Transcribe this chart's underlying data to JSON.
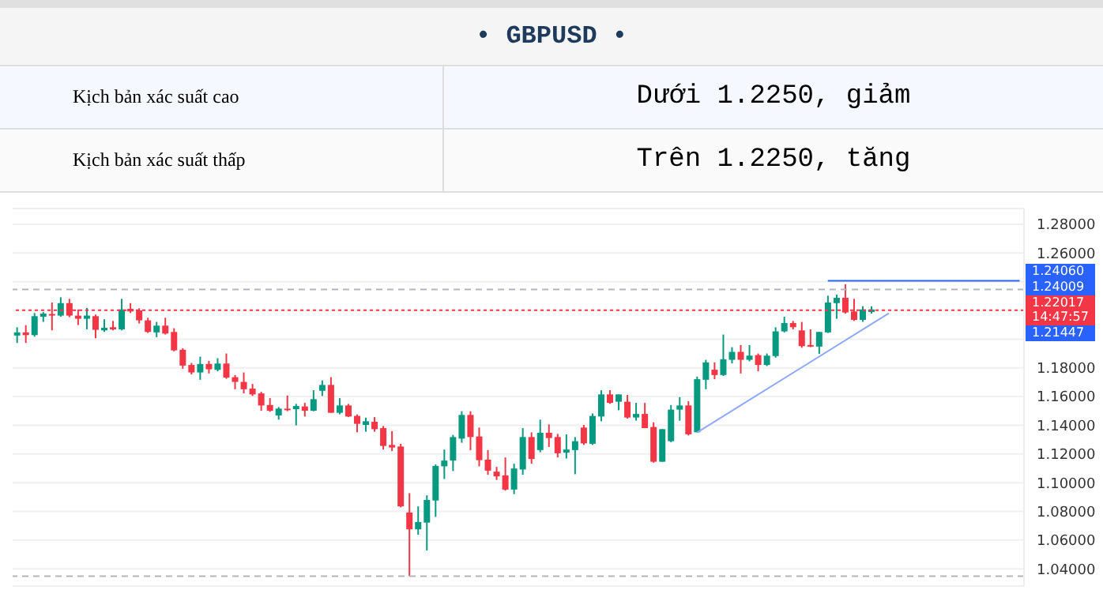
{
  "chart_data": {
    "type": "candlestick",
    "title": "• GBPUSD •",
    "annotations": [
      "Kịch bản xác suất cao",
      "Dưới 1.2250, giảm",
      "Kịch bản xác suất thấp",
      "Trên 1.2250, tăng",
      "1.24060",
      "1.24009",
      "1.21447"
    ],
    "categories": [
      null,
      null,
      null,
      null,
      null,
      null,
      null,
      null,
      null,
      null,
      null,
      null,
      null,
      null,
      null,
      null,
      null,
      null,
      null,
      null,
      null,
      null,
      null,
      null,
      null,
      null,
      null,
      null,
      null,
      null,
      null,
      null,
      null,
      null,
      null,
      null,
      null,
      null,
      null,
      null,
      null,
      null,
      null,
      null,
      null,
      null,
      null,
      null,
      null,
      null,
      null,
      null,
      null,
      null,
      null,
      null,
      null,
      null,
      null,
      null,
      null,
      null,
      null,
      null,
      null,
      null,
      null,
      null,
      null,
      null,
      null,
      null,
      null,
      null,
      null,
      null,
      null,
      null,
      null,
      null,
      null,
      null,
      null,
      null,
      null,
      null,
      null,
      null,
      null,
      null,
      null,
      null,
      null,
      null,
      null,
      null,
      null,
      null,
      null,
      null,
      null,
      null,
      null,
      null,
      null,
      null,
      null,
      null,
      null,
      null,
      null,
      null,
      null,
      null,
      null,
      null
    ],
    "ohlc": [
      [
        1.2025,
        1.2083,
        1.1973,
        1.2047
      ],
      [
        1.2047,
        1.2098,
        1.1973,
        1.2028
      ],
      [
        1.2028,
        1.2182,
        1.2017,
        1.216
      ],
      [
        1.2156,
        1.2189,
        1.212,
        1.2178
      ],
      [
        1.2175,
        1.2255,
        1.2061,
        1.2167
      ],
      [
        1.2164,
        1.2292,
        1.2156,
        1.2251
      ],
      [
        1.2251,
        1.2281,
        1.2153,
        1.2164
      ],
      [
        1.2164,
        1.2207,
        1.2098,
        1.2142
      ],
      [
        1.2142,
        1.2218,
        1.2068,
        1.2164
      ],
      [
        1.216,
        1.2171,
        1.2006,
        1.2065
      ],
      [
        1.2061,
        1.2138,
        1.205,
        1.2079
      ],
      [
        1.2083,
        1.2127,
        1.2061,
        1.2068
      ],
      [
        1.2068,
        1.2281,
        1.2061,
        1.2207
      ],
      [
        1.2211,
        1.2251,
        1.2182,
        1.2193
      ],
      [
        1.22,
        1.2215,
        1.2109,
        1.2131
      ],
      [
        1.2131,
        1.2149,
        1.2043,
        1.205
      ],
      [
        1.2047,
        1.212,
        1.2014,
        1.2094
      ],
      [
        1.2094,
        1.2149,
        1.2032,
        1.2039
      ],
      [
        1.205,
        1.2076,
        1.1915,
        1.1922
      ],
      [
        1.1926,
        1.1937,
        1.1794,
        1.1816
      ],
      [
        1.182,
        1.1834,
        1.1754,
        1.1768
      ],
      [
        1.1768,
        1.1878,
        1.1717,
        1.1827
      ],
      [
        1.1827,
        1.1849,
        1.1761,
        1.179
      ],
      [
        1.1786,
        1.1867,
        1.1776,
        1.183
      ],
      [
        1.183,
        1.19,
        1.1724,
        1.1732
      ],
      [
        1.1735,
        1.175,
        1.1651,
        1.1702
      ],
      [
        1.1702,
        1.1768,
        1.1622,
        1.1651
      ],
      [
        1.1655,
        1.1688,
        1.1604,
        1.1615
      ],
      [
        1.1622,
        1.1633,
        1.1501,
        1.1538
      ],
      [
        1.1541,
        1.1589,
        1.1494,
        1.1501
      ],
      [
        1.1468,
        1.1527,
        1.1439,
        1.1516
      ],
      [
        1.1516,
        1.1607,
        1.1498,
        1.1509
      ],
      [
        1.1512,
        1.1549,
        1.1399,
        1.1534
      ],
      [
        1.1531,
        1.1556,
        1.1461,
        1.1501
      ],
      [
        1.1501,
        1.1644,
        1.1498,
        1.1582
      ],
      [
        1.164,
        1.1713,
        1.1604,
        1.1681
      ],
      [
        1.1681,
        1.1735,
        1.1487,
        1.1487
      ],
      [
        1.1487,
        1.1589,
        1.1476,
        1.1538
      ],
      [
        1.1538,
        1.1549,
        1.1457,
        1.1461
      ],
      [
        1.1465,
        1.1476,
        1.1351,
        1.141
      ],
      [
        1.1402,
        1.1453,
        1.1355,
        1.1428
      ],
      [
        1.1424,
        1.1457,
        1.1355,
        1.1373
      ],
      [
        1.138,
        1.1395,
        1.1231,
        1.1256
      ],
      [
        1.1263,
        1.1359,
        1.122,
        1.1245
      ],
      [
        1.1252,
        1.1271,
        1.0828,
        1.0835
      ],
      [
        1.0792,
        1.0927,
        1.0349,
        1.0675
      ],
      [
        1.0675,
        1.0835,
        1.0638,
        1.0726
      ],
      [
        1.0722,
        1.0912,
        1.0528,
        1.088
      ],
      [
        1.0876,
        1.1128,
        1.0762,
        1.1117
      ],
      [
        1.1114,
        1.1231,
        1.1026,
        1.1154
      ],
      [
        1.1154,
        1.1333,
        1.1081,
        1.1318
      ],
      [
        1.1307,
        1.1498,
        1.1278,
        1.1472
      ],
      [
        1.1472,
        1.1498,
        1.1227,
        1.1318
      ],
      [
        1.1322,
        1.1384,
        1.1114,
        1.1157
      ],
      [
        1.1161,
        1.1227,
        1.1055,
        1.1084
      ],
      [
        1.1077,
        1.111,
        1.1019,
        1.1044
      ],
      [
        1.1051,
        1.1176,
        1.0945,
        1.0952
      ],
      [
        1.0952,
        1.1132,
        1.092,
        1.1099
      ],
      [
        1.1092,
        1.138,
        1.1055,
        1.1318
      ],
      [
        1.1318,
        1.1351,
        1.1132,
        1.1165
      ],
      [
        1.1227,
        1.1439,
        1.1212,
        1.1348
      ],
      [
        1.1348,
        1.1406,
        1.1249,
        1.1311
      ],
      [
        1.1318,
        1.134,
        1.1176,
        1.1205
      ],
      [
        1.1209,
        1.1337,
        1.1168,
        1.1231
      ],
      [
        1.1227,
        1.1318,
        1.1059,
        1.1289
      ],
      [
        1.1384,
        1.1402,
        1.1263,
        1.1274
      ],
      [
        1.1271,
        1.1483,
        1.1263,
        1.1465
      ],
      [
        1.1461,
        1.1644,
        1.1428,
        1.1615
      ],
      [
        1.1615,
        1.1644,
        1.1549,
        1.1556
      ],
      [
        1.1564,
        1.1615,
        1.1505,
        1.1615
      ],
      [
        1.1564,
        1.1611,
        1.1446,
        1.1454
      ],
      [
        1.1454,
        1.1556,
        1.1432,
        1.1479
      ],
      [
        1.1479,
        1.1556,
        1.138,
        1.138
      ],
      [
        1.1388,
        1.1421,
        1.1139,
        1.1146
      ],
      [
        1.1146,
        1.1373,
        1.1146,
        1.1373
      ],
      [
        1.1289,
        1.1541,
        1.1282,
        1.1509
      ],
      [
        1.1509,
        1.1596,
        1.1432,
        1.1538
      ],
      [
        1.1538,
        1.1567,
        1.1329,
        1.1337
      ],
      [
        1.1351,
        1.1739,
        1.1351,
        1.1721
      ],
      [
        1.1717,
        1.1856,
        1.1651,
        1.1838
      ],
      [
        1.1787,
        1.1838,
        1.1721,
        1.175
      ],
      [
        1.175,
        1.2032,
        1.1743,
        1.186
      ],
      [
        1.1856,
        1.1944,
        1.1831,
        1.1911
      ],
      [
        1.1911,
        1.1959,
        1.1761,
        1.1856
      ],
      [
        1.1856,
        1.1959,
        1.1845,
        1.1885
      ],
      [
        1.1889,
        1.19,
        1.1776,
        1.182
      ],
      [
        1.182,
        1.19,
        1.1812,
        1.1885
      ],
      [
        1.1882,
        1.2083,
        1.1871,
        1.2054
      ],
      [
        1.2054,
        1.2156,
        1.2047,
        1.2112
      ],
      [
        1.2112,
        1.2127,
        1.2068,
        1.2083
      ],
      [
        1.2061,
        1.212,
        1.194,
        1.1951
      ],
      [
        1.1959,
        1.2068,
        1.1944,
        1.1948
      ],
      [
        1.1948,
        1.205,
        1.1897,
        1.205
      ],
      [
        1.2047,
        1.2303,
        1.2043,
        1.2255
      ],
      [
        1.2251,
        1.231,
        1.2142,
        1.2288
      ],
      [
        1.2288,
        1.2383,
        1.2178,
        1.2186
      ],
      [
        1.2193,
        1.2281,
        1.2127,
        1.2134
      ],
      [
        1.2134,
        1.2229,
        1.212,
        1.2207
      ],
      [
        1.2189,
        1.2229,
        1.2178,
        1.2207
      ],
      null,
      null,
      null,
      null,
      null,
      null,
      null,
      null,
      null,
      null,
      null,
      null,
      null,
      null,
      null,
      null,
      null
    ],
    "colors": [
      "#089981",
      "#f23645",
      "#089981",
      "#089981",
      "#f23645",
      "#089981",
      "#f23645",
      "#f23645",
      "#089981",
      "#f23645",
      "#089981",
      "#f23645",
      "#089981",
      "#f23645",
      "#f23645",
      "#f23645",
      "#089981",
      "#f23645",
      "#f23645",
      "#f23645",
      "#f23645",
      "#089981",
      "#f23645",
      "#089981",
      "#f23645",
      "#f23645",
      "#f23645",
      "#f23645",
      "#f23645",
      "#f23645",
      "#089981",
      "#f23645",
      "#089981",
      "#f23645",
      "#089981",
      "#089981",
      "#f23645",
      "#089981",
      "#f23645",
      "#f23645",
      "#089981",
      "#f23645",
      "#f23645",
      "#f23645",
      "#f23645",
      "#f23645",
      "#089981",
      "#089981",
      "#089981",
      "#089981",
      "#089981",
      "#089981",
      "#f23645",
      "#f23645",
      "#f23645",
      "#f23645",
      "#f23645",
      "#089981",
      "#089981",
      "#f23645",
      "#089981",
      "#f23645",
      "#f23645",
      "#089981",
      "#089981",
      "#f23645",
      "#089981",
      "#089981",
      "#f23645",
      "#089981",
      "#f23645",
      "#089981",
      "#f23645",
      "#f23645",
      "#089981",
      "#089981",
      "#089981",
      "#f23645",
      "#089981",
      "#089981",
      "#f23645",
      "#089981",
      "#089981",
      "#f23645",
      "#089981",
      "#f23645",
      "#089981",
      "#089981",
      "#089981",
      "#f23645",
      "#f23645",
      "#f23645",
      "#089981",
      "#089981",
      "#089981",
      "#f23645",
      "#f23645",
      "#089981",
      "#089981",
      null,
      null,
      null,
      null,
      null,
      null,
      null,
      null,
      null,
      null,
      null,
      null,
      null,
      null,
      null,
      null,
      null
    ],
    "series": [
      {
        "type": "line",
        "color": "#2962ff",
        "values": [
          null,
          null,
          null,
          null,
          null,
          null,
          null,
          null,
          null,
          null,
          null,
          null,
          null,
          null,
          null,
          null,
          null,
          null,
          null,
          null,
          null,
          null,
          null,
          null,
          null,
          null,
          null,
          null,
          null,
          null,
          null,
          null,
          null,
          null,
          null,
          null,
          null,
          null,
          null,
          null,
          null,
          null,
          null,
          null,
          null,
          null,
          null,
          null,
          null,
          null,
          null,
          null,
          null,
          null,
          null,
          null,
          null,
          null,
          null,
          null,
          null,
          null,
          null,
          null,
          null,
          null,
          null,
          null,
          null,
          null,
          null,
          null,
          null,
          null,
          null,
          null,
          null,
          null,
          null,
          null,
          null,
          null,
          null,
          null,
          null,
          null,
          null,
          null,
          null,
          null,
          null,
          null,
          null,
          1.2406,
          null,
          null,
          null,
          null,
          null,
          null,
          null,
          null,
          null,
          null,
          null,
          null,
          null,
          null,
          null,
          null,
          null,
          null,
          null,
          null,
          null,
          1.2406
        ]
      },
      {
        "type": "line",
        "color": "#8fa8ff",
        "values": [
          null,
          null,
          null,
          null,
          null,
          null,
          null,
          null,
          null,
          null,
          null,
          null,
          null,
          null,
          null,
          null,
          null,
          null,
          null,
          null,
          null,
          null,
          null,
          null,
          null,
          null,
          null,
          null,
          null,
          null,
          null,
          null,
          null,
          null,
          null,
          null,
          null,
          null,
          null,
          null,
          null,
          null,
          null,
          null,
          null,
          null,
          null,
          null,
          null,
          null,
          null,
          null,
          null,
          null,
          null,
          null,
          null,
          null,
          null,
          null,
          null,
          null,
          null,
          null,
          null,
          null,
          null,
          null,
          null,
          null,
          null,
          null,
          null,
          null,
          null,
          null,
          null,
          null,
          1.135,
          null,
          null,
          null,
          null,
          null,
          null,
          null,
          null,
          null,
          null,
          null,
          null,
          null,
          null,
          null,
          null,
          null,
          null,
          null,
          null,
          null,
          1.218,
          null,
          null,
          null,
          null,
          null,
          null,
          null,
          null,
          null,
          null,
          null,
          null,
          null,
          null,
          null
        ]
      }
    ],
    "ref_lines": [
      {
        "axis": "y",
        "value": 1.22017,
        "label": "1.22017\n14:47:57",
        "color": "#f23645",
        "line_style": "dotted"
      },
      {
        "axis": "y",
        "value": 1.2346,
        "color": "#b2b5be",
        "line_style": "dashed"
      },
      {
        "axis": "y",
        "value": 1.0349,
        "color": "#b2b5be",
        "line_style": "dashed"
      }
    ],
    "ylim": [
      1.028,
      1.291
    ],
    "yticks": [
      {
        "value": 1.04,
        "label": "1.04000"
      },
      {
        "value": 1.06,
        "label": "1.06000"
      },
      {
        "value": 1.08,
        "label": "1.08000"
      },
      {
        "value": 1.1,
        "label": "1.10000"
      },
      {
        "value": 1.12,
        "label": "1.12000"
      },
      {
        "value": 1.14,
        "label": "1.14000"
      },
      {
        "value": 1.16,
        "label": "1.16000"
      },
      {
        "value": 1.18,
        "label": "1.18000"
      },
      {
        "value": 1.2,
        "label": null
      },
      {
        "value": 1.22,
        "label": null
      },
      {
        "value": 1.24,
        "label": null
      },
      {
        "value": 1.26,
        "label": "1.26000"
      },
      {
        "value": 1.28,
        "label": "1.28000"
      }
    ],
    "grid": "y",
    "tick_labels": "y",
    "legend": false
  }
}
